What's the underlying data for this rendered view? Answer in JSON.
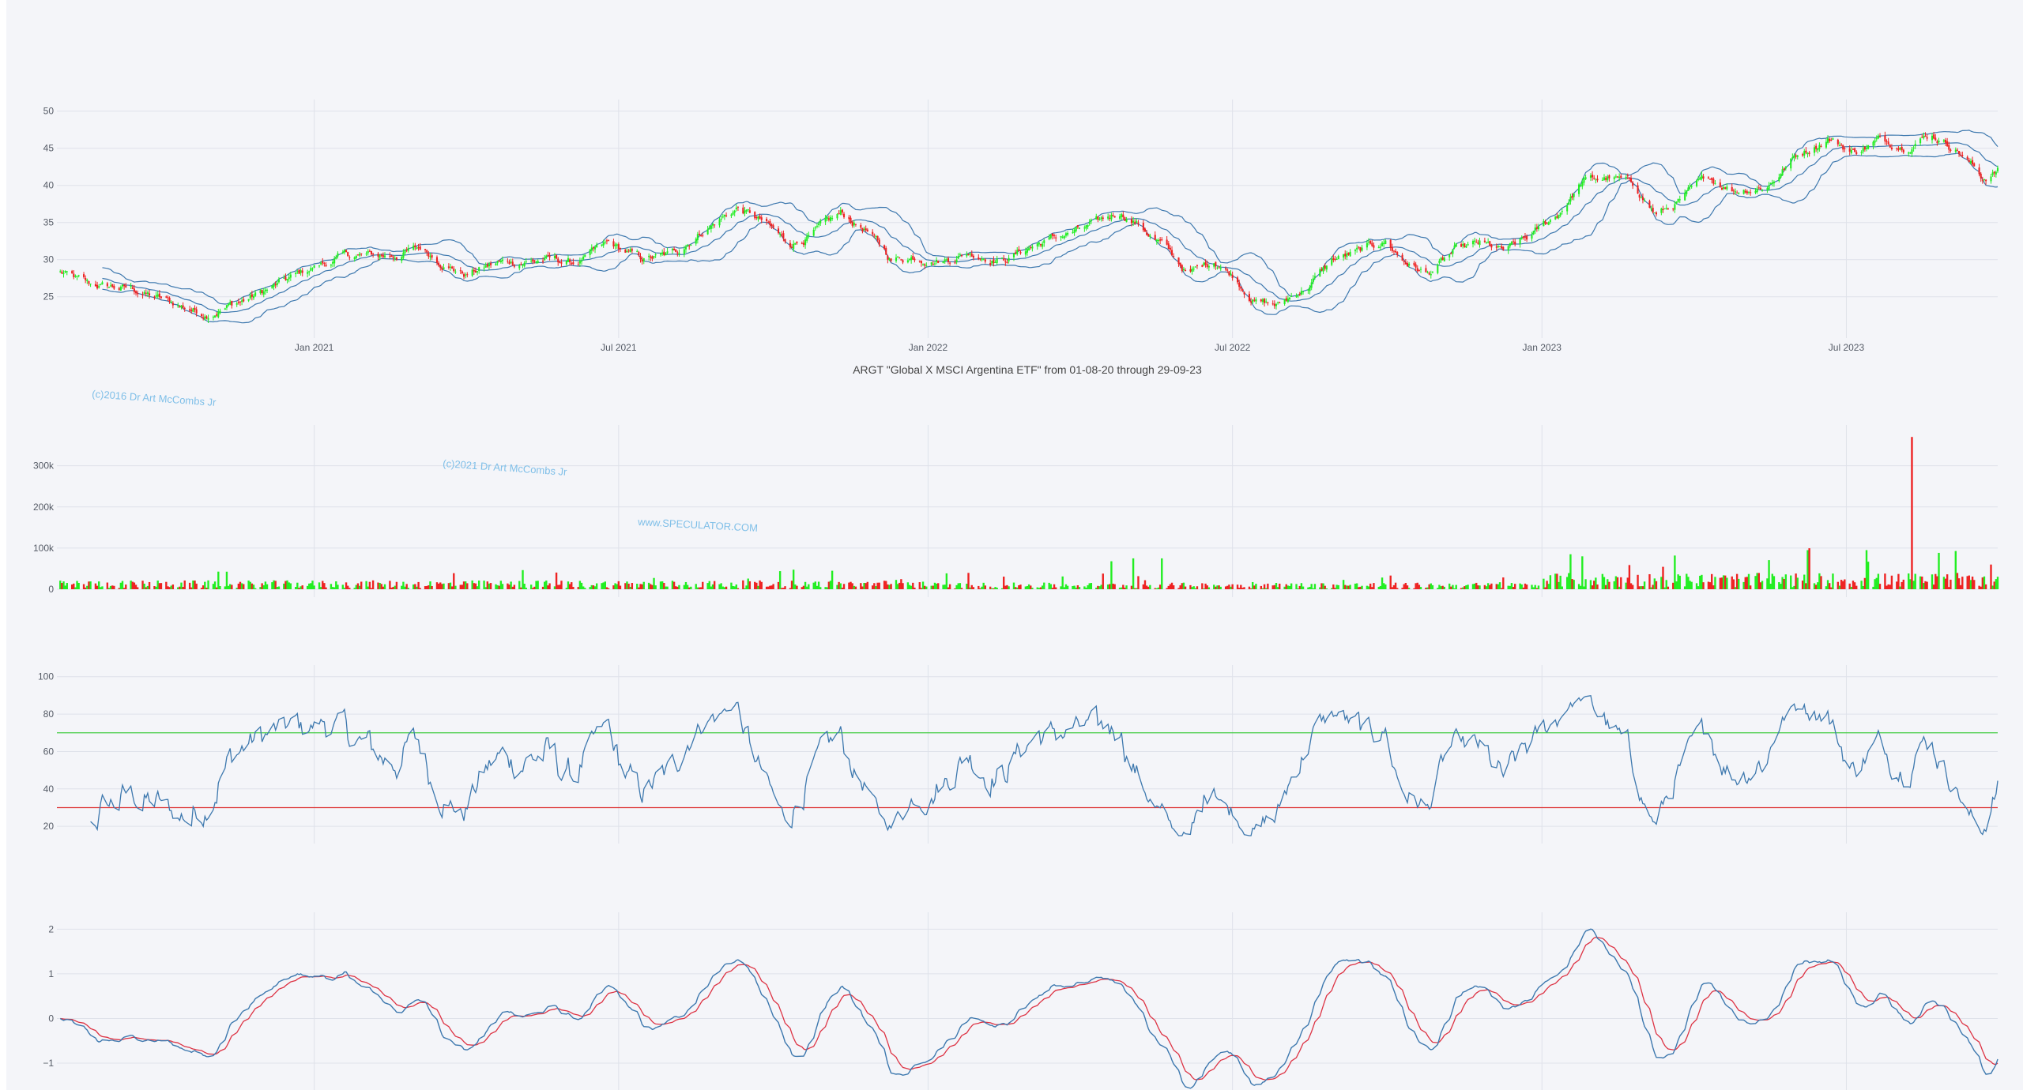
{
  "chart_data": [
    {
      "type": "candlestick",
      "title": "ARGT \"Global X MSCI Argentina ETF\" from 01-08-20 through 29-09-23",
      "x_ticks": [
        "Jan 2021",
        "Jul 2021",
        "Jan 2022",
        "Jul 2022",
        "Jan 2023",
        "Jul 2023"
      ],
      "y_ticks": [
        25,
        30,
        35,
        40,
        45,
        50
      ],
      "ylim": [
        20.5,
        50.5
      ],
      "price_anchors": [
        [
          "2020-08-01",
          28.5
        ],
        [
          "2020-08-20",
          26.5
        ],
        [
          "2020-09-15",
          26
        ],
        [
          "2020-10-10",
          24
        ],
        [
          "2020-10-28",
          22.8
        ],
        [
          "2020-11-20",
          24.5
        ],
        [
          "2020-12-10",
          26.5
        ],
        [
          "2021-01-01",
          29
        ],
        [
          "2021-01-20",
          30.5
        ],
        [
          "2021-02-15",
          30.5
        ],
        [
          "2021-03-05",
          31.5
        ],
        [
          "2021-03-20",
          29.5
        ],
        [
          "2021-04-01",
          28
        ],
        [
          "2021-04-20",
          29.5
        ],
        [
          "2021-05-20",
          30
        ],
        [
          "2021-06-05",
          29.5
        ],
        [
          "2021-06-25",
          32
        ],
        [
          "2021-07-15",
          30
        ],
        [
          "2021-08-01",
          30.5
        ],
        [
          "2021-08-20",
          34
        ],
        [
          "2021-09-10",
          37
        ],
        [
          "2021-09-25",
          35
        ],
        [
          "2021-10-10",
          32
        ],
        [
          "2021-10-25",
          33.5
        ],
        [
          "2021-11-10",
          36
        ],
        [
          "2021-11-25",
          34
        ],
        [
          "2021-12-10",
          30
        ],
        [
          "2021-12-25",
          30.5
        ],
        [
          "2022-01-10",
          30
        ],
        [
          "2022-01-25",
          31
        ],
        [
          "2022-02-15",
          30
        ],
        [
          "2022-03-05",
          32
        ],
        [
          "2022-03-25",
          33.5
        ],
        [
          "2022-04-10",
          34.5
        ],
        [
          "2022-04-25",
          36.5
        ],
        [
          "2022-05-05",
          35
        ],
        [
          "2022-05-20",
          32
        ],
        [
          "2022-06-05",
          28
        ],
        [
          "2022-06-20",
          30
        ],
        [
          "2022-07-01",
          28
        ],
        [
          "2022-07-15",
          24.5
        ],
        [
          "2022-07-28",
          23.8
        ],
        [
          "2022-08-15",
          26.5
        ],
        [
          "2022-08-30",
          30
        ],
        [
          "2022-09-15",
          31
        ],
        [
          "2022-09-30",
          32.5
        ],
        [
          "2022-10-10",
          30
        ],
        [
          "2022-10-25",
          28
        ],
        [
          "2022-11-10",
          31
        ],
        [
          "2022-11-25",
          32
        ],
        [
          "2022-12-10",
          31
        ],
        [
          "2022-12-25",
          33
        ],
        [
          "2023-01-10",
          36
        ],
        [
          "2023-01-25",
          40.5
        ],
        [
          "2023-02-10",
          41
        ],
        [
          "2023-02-25",
          40
        ],
        [
          "2023-03-10",
          36
        ],
        [
          "2023-03-25",
          38
        ],
        [
          "2023-04-10",
          41
        ],
        [
          "2023-04-25",
          39.5
        ],
        [
          "2023-05-15",
          40
        ],
        [
          "2023-06-01",
          44
        ],
        [
          "2023-06-20",
          46.5
        ],
        [
          "2023-07-05",
          44.5
        ],
        [
          "2023-07-20",
          46
        ],
        [
          "2023-08-05",
          45.5
        ],
        [
          "2023-08-20",
          47
        ],
        [
          "2023-09-05",
          45
        ],
        [
          "2023-09-20",
          41
        ],
        [
          "2023-09-29",
          42
        ]
      ],
      "bollinger": {
        "period": 20,
        "std": 2
      }
    },
    {
      "type": "bar",
      "y_ticks": [
        "0",
        "100k",
        "200k",
        "300k"
      ],
      "ylim": [
        0,
        380000
      ],
      "volume_spikes": [
        [
          "2023-08-09",
          370000,
          "down"
        ],
        [
          "2023-07-13",
          95000,
          "up"
        ],
        [
          "2023-06-08",
          95000,
          "up"
        ],
        [
          "2023-01-18",
          85000,
          "up"
        ],
        [
          "2023-01-25",
          80000,
          "up"
        ],
        [
          "2022-05-03",
          75000,
          "up"
        ],
        [
          "2022-05-20",
          75000,
          "up"
        ],
        [
          "2022-04-20",
          68000,
          "up"
        ],
        [
          "2023-08-12",
          90000,
          "down"
        ],
        [
          "2023-09-25",
          60000,
          "down"
        ]
      ],
      "up_color": "#22ee22",
      "down_color": "#ee2222"
    },
    {
      "type": "line",
      "y_ticks": [
        20,
        40,
        60,
        80,
        100
      ],
      "ylim": [
        15,
        102
      ],
      "overbought": 70,
      "oversold": 30,
      "overbought_color": "#44cc44",
      "oversold_color": "#dd3333"
    },
    {
      "type": "line",
      "y_ticks": [
        "2",
        "1",
        "0",
        "−1"
      ],
      "ylim": [
        -1.6,
        2.2
      ],
      "series_colors": [
        "#3d78ae",
        "#dd3344"
      ]
    }
  ],
  "watermarks": {
    "w1": "(c)2016 Dr Art McCombs Jr",
    "w2": "(c)2021 Dr Art McCombs Jr",
    "w3": "www.SPECULATOR.COM"
  },
  "colors": {
    "line": "#3d78ae",
    "up": "#22ee22",
    "down": "#ee2222"
  }
}
